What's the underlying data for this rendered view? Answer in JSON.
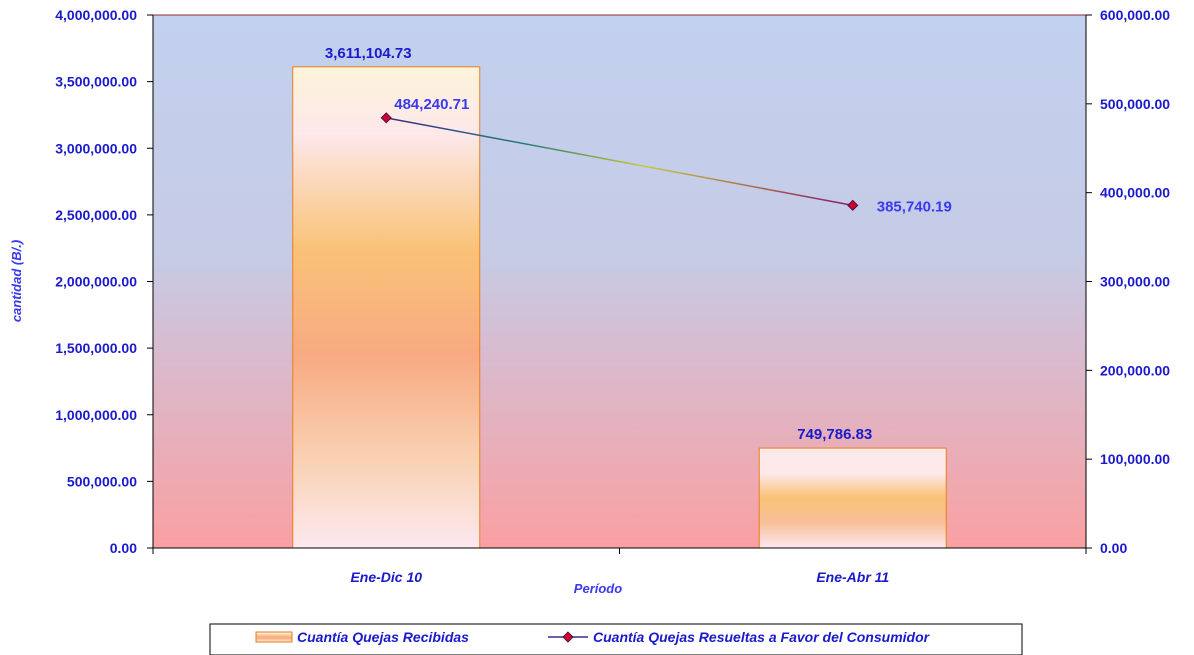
{
  "chart_data": {
    "type": "bar",
    "categories": [
      "Ene-Dic 10",
      "Ene-Abr 11"
    ],
    "xlabel": "Período",
    "ylabel": "cantidad (B/.)",
    "ylim": [
      0,
      4000000
    ],
    "y2lim": [
      0,
      600000
    ],
    "yticks": [
      "0.00",
      "500,000.00",
      "1,000,000.00",
      "1,500,000.00",
      "2,000,000.00",
      "2,500,000.00",
      "3,000,000.00",
      "3,500,000.00",
      "4,000,000.00"
    ],
    "y2ticks": [
      "0.00",
      "100,000.00",
      "200,000.00",
      "300,000.00",
      "400,000.00",
      "500,000.00",
      "600,000.00"
    ],
    "series": [
      {
        "name": "Cuantía Quejas Recibidas",
        "kind": "bar",
        "axis": "left",
        "values": [
          3611104.73,
          749786.83
        ],
        "labels": [
          "3,611,104.73",
          "749,786.83"
        ]
      },
      {
        "name": "Cuantía Quejas Resueltas a Favor del Consumidor",
        "kind": "line",
        "axis": "right",
        "values": [
          484240.71,
          385740.19
        ],
        "labels": [
          "484,240.71",
          "385,740.19"
        ],
        "color": "#5a0a5a",
        "marker_color": "#cc0033"
      }
    ],
    "legend": "bottom",
    "grid": false
  }
}
